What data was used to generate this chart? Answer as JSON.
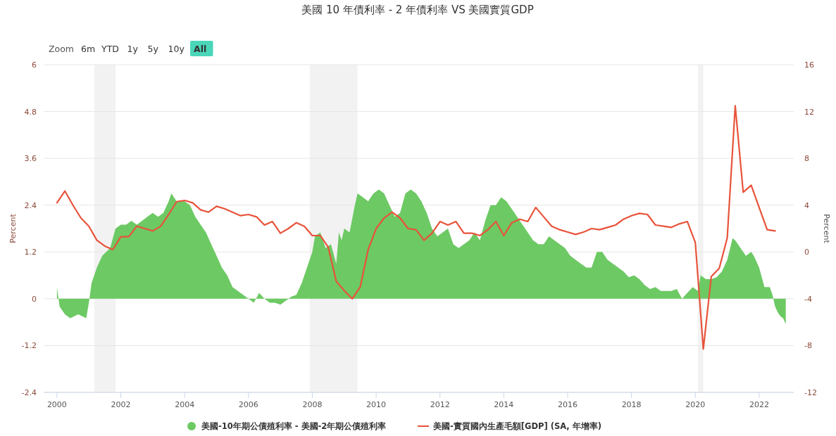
{
  "chart_data": {
    "type": "area",
    "title": "美國 10 年債利率 - 2 年債利率 VS 美國實質GDP",
    "annotations": [
      "Zoom",
      "6m",
      "YTD",
      "1y",
      "5y",
      "10y",
      "All"
    ],
    "ylabel": "Percent",
    "y2label": "Percent",
    "xlim": [
      "1999-08",
      "2023-02"
    ],
    "xticks": [
      {
        "value": "2000",
        "label": "2000"
      },
      {
        "value": "2002",
        "label": "2002"
      },
      {
        "value": "2004",
        "label": "2004"
      },
      {
        "value": "2006",
        "label": "2006"
      },
      {
        "value": "2008",
        "label": "2008"
      },
      {
        "value": "2010",
        "label": "2010"
      },
      {
        "value": "2012",
        "label": "2012"
      },
      {
        "value": "2014",
        "label": "2014"
      },
      {
        "value": "2016",
        "label": "2016"
      },
      {
        "value": "2018",
        "label": "2018"
      },
      {
        "value": "2020",
        "label": "2020"
      },
      {
        "value": "2022",
        "label": "2022"
      }
    ],
    "ylim": [
      -2.4,
      6
    ],
    "yticks": [
      -2.4,
      -1.2,
      0,
      1.2,
      2.4,
      3.6,
      4.8,
      6
    ],
    "y2lim": [
      -12,
      16
    ],
    "y2ticks": [
      -12,
      -8,
      -4,
      0,
      4,
      8,
      12,
      16
    ],
    "grid": "y",
    "legend": "bottom",
    "bands": [
      {
        "axis": "x",
        "from": "2001-03",
        "to": "2001-11",
        "color": "#f2f2f2"
      },
      {
        "axis": "x",
        "from": "2007-12",
        "to": "2009-06",
        "color": "#f2f2f2"
      },
      {
        "axis": "x",
        "from": "2020-02",
        "to": "2020-04",
        "color": "#f2f2f2"
      }
    ],
    "series": [
      {
        "name": "美國-10年期公債殖利率 - 美國-2年期公債殖利率",
        "type": "area",
        "color": "#6dc964",
        "x": [
          "2000-01",
          "2000-02",
          "2000-04",
          "2000-06",
          "2000-09",
          "2000-12",
          "2001-01",
          "2001-02",
          "2001-04",
          "2001-06",
          "2001-09",
          "2001-11",
          "2002-01",
          "2002-03",
          "2002-05",
          "2002-07",
          "2002-09",
          "2002-11",
          "2003-01",
          "2003-03",
          "2003-05",
          "2003-07",
          "2003-08",
          "2003-10",
          "2004-01",
          "2004-03",
          "2004-05",
          "2004-07",
          "2004-09",
          "2004-11",
          "2005-01",
          "2005-03",
          "2005-05",
          "2005-07",
          "2005-09",
          "2005-11",
          "2006-01",
          "2006-03",
          "2006-05",
          "2006-07",
          "2006-09",
          "2006-11",
          "2007-01",
          "2007-03",
          "2007-05",
          "2007-07",
          "2007-09",
          "2007-11",
          "2008-01",
          "2008-02",
          "2008-04",
          "2008-06",
          "2008-08",
          "2008-10",
          "2008-11",
          "2008-12",
          "2009-01",
          "2009-03",
          "2009-05",
          "2009-06",
          "2009-08",
          "2009-10",
          "2009-12",
          "2010-02",
          "2010-04",
          "2010-06",
          "2010-08",
          "2010-10",
          "2010-12",
          "2011-02",
          "2011-04",
          "2011-06",
          "2011-08",
          "2011-10",
          "2011-12",
          "2012-02",
          "2012-04",
          "2012-06",
          "2012-08",
          "2012-10",
          "2012-12",
          "2013-02",
          "2013-04",
          "2013-06",
          "2013-08",
          "2013-10",
          "2013-12",
          "2014-02",
          "2014-04",
          "2014-06",
          "2014-08",
          "2014-10",
          "2014-12",
          "2015-02",
          "2015-04",
          "2015-06",
          "2015-08",
          "2015-10",
          "2015-12",
          "2016-02",
          "2016-04",
          "2016-06",
          "2016-08",
          "2016-10",
          "2016-12",
          "2017-02",
          "2017-04",
          "2017-06",
          "2017-08",
          "2017-10",
          "2017-12",
          "2018-02",
          "2018-04",
          "2018-06",
          "2018-08",
          "2018-10",
          "2018-12",
          "2019-02",
          "2019-04",
          "2019-06",
          "2019-08",
          "2019-10",
          "2019-12",
          "2020-02",
          "2020-03",
          "2020-05",
          "2020-07",
          "2020-09",
          "2020-11",
          "2021-01",
          "2021-03",
          "2021-04",
          "2021-06",
          "2021-08",
          "2021-10",
          "2021-11",
          "2022-01",
          "2022-03",
          "2022-04",
          "2022-05",
          "2022-06",
          "2022-07",
          "2022-08",
          "2022-09",
          "2022-10",
          "2022-11"
        ],
        "values": [
          0.3,
          -0.2,
          -0.4,
          -0.5,
          -0.4,
          -0.5,
          -0.1,
          0.4,
          0.8,
          1.1,
          1.3,
          1.8,
          1.9,
          1.9,
          2.0,
          1.9,
          2.0,
          2.1,
          2.2,
          2.1,
          2.2,
          2.5,
          2.7,
          2.5,
          2.5,
          2.4,
          2.1,
          1.9,
          1.7,
          1.4,
          1.1,
          0.8,
          0.6,
          0.3,
          0.2,
          0.1,
          0.0,
          -0.1,
          0.15,
          0.0,
          -0.1,
          -0.1,
          -0.15,
          -0.05,
          0.05,
          0.1,
          0.4,
          0.8,
          1.2,
          1.6,
          1.7,
          1.3,
          1.4,
          0.9,
          1.7,
          1.5,
          1.8,
          1.7,
          2.4,
          2.7,
          2.6,
          2.5,
          2.7,
          2.8,
          2.7,
          2.4,
          2.1,
          2.2,
          2.7,
          2.8,
          2.7,
          2.5,
          2.2,
          1.8,
          1.6,
          1.7,
          1.8,
          1.4,
          1.3,
          1.4,
          1.5,
          1.7,
          1.5,
          2.0,
          2.4,
          2.4,
          2.6,
          2.5,
          2.3,
          2.1,
          1.9,
          1.7,
          1.5,
          1.4,
          1.4,
          1.6,
          1.5,
          1.4,
          1.3,
          1.1,
          1.0,
          0.9,
          0.8,
          0.8,
          1.2,
          1.2,
          1.0,
          0.9,
          0.8,
          0.7,
          0.55,
          0.6,
          0.5,
          0.35,
          0.25,
          0.3,
          0.2,
          0.2,
          0.2,
          0.25,
          0.0,
          0.15,
          0.3,
          0.2,
          0.6,
          0.5,
          0.5,
          0.55,
          0.7,
          1.0,
          1.55,
          1.5,
          1.3,
          1.1,
          1.2,
          1.1,
          0.8,
          0.3,
          0.3,
          0.3,
          0.1,
          -0.2,
          -0.35,
          -0.45,
          -0.5,
          -0.65
        ]
      },
      {
        "name": "美國-實質國內生產毛額[GDP] (SA, 年增率)",
        "type": "line",
        "axis": "y2",
        "color": "#e8533a",
        "x": [
          "2000-01",
          "2000-04",
          "2000-07",
          "2000-10",
          "2001-01",
          "2001-04",
          "2001-07",
          "2001-10",
          "2002-01",
          "2002-04",
          "2002-07",
          "2002-10",
          "2003-01",
          "2003-04",
          "2003-07",
          "2003-10",
          "2004-01",
          "2004-04",
          "2004-07",
          "2004-10",
          "2005-01",
          "2005-04",
          "2005-07",
          "2005-10",
          "2006-01",
          "2006-04",
          "2006-07",
          "2006-10",
          "2007-01",
          "2007-04",
          "2007-07",
          "2007-10",
          "2008-01",
          "2008-04",
          "2008-07",
          "2008-10",
          "2009-01",
          "2009-04",
          "2009-07",
          "2009-10",
          "2010-01",
          "2010-04",
          "2010-07",
          "2010-10",
          "2011-01",
          "2011-04",
          "2011-07",
          "2011-10",
          "2012-01",
          "2012-04",
          "2012-07",
          "2012-10",
          "2013-01",
          "2013-04",
          "2013-07",
          "2013-10",
          "2014-01",
          "2014-04",
          "2014-07",
          "2014-10",
          "2015-01",
          "2015-04",
          "2015-07",
          "2015-10",
          "2016-01",
          "2016-04",
          "2016-07",
          "2016-10",
          "2017-01",
          "2017-04",
          "2017-07",
          "2017-10",
          "2018-01",
          "2018-04",
          "2018-07",
          "2018-10",
          "2019-01",
          "2019-04",
          "2019-07",
          "2019-10",
          "2020-01",
          "2020-04",
          "2020-07",
          "2020-10",
          "2021-01",
          "2021-04",
          "2021-07",
          "2021-10",
          "2022-01",
          "2022-04",
          "2022-07"
        ],
        "values": [
          4.2,
          5.2,
          4.0,
          2.9,
          2.2,
          1.0,
          0.5,
          0.2,
          1.3,
          1.3,
          2.2,
          2.0,
          1.8,
          2.2,
          3.2,
          4.3,
          4.4,
          4.2,
          3.6,
          3.4,
          3.9,
          3.7,
          3.4,
          3.1,
          3.2,
          3.0,
          2.3,
          2.6,
          1.6,
          2.0,
          2.5,
          2.2,
          1.4,
          1.4,
          0.4,
          -2.5,
          -3.3,
          -4.0,
          -3.0,
          0.2,
          2.0,
          2.9,
          3.4,
          2.9,
          2.0,
          1.9,
          1.0,
          1.6,
          2.6,
          2.3,
          2.6,
          1.6,
          1.6,
          1.4,
          1.9,
          2.6,
          1.4,
          2.5,
          2.8,
          2.6,
          3.8,
          3.0,
          2.2,
          1.9,
          1.7,
          1.5,
          1.7,
          2.0,
          1.9,
          2.1,
          2.3,
          2.8,
          3.1,
          3.3,
          3.2,
          2.3,
          2.2,
          2.1,
          2.4,
          2.6,
          0.8,
          -8.3,
          -2.1,
          -1.4,
          1.2,
          12.5,
          5.1,
          5.7,
          3.8,
          1.9,
          1.8
        ]
      }
    ]
  }
}
